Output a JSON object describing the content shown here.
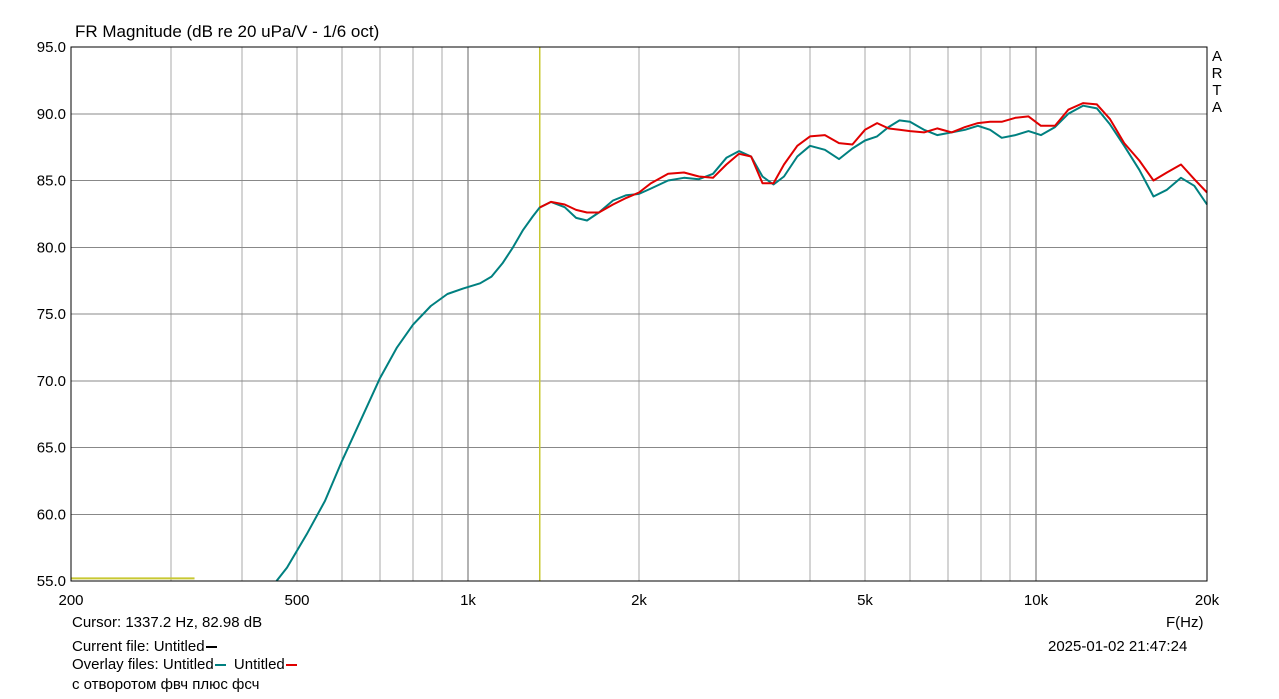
{
  "chart_data": {
    "type": "line",
    "title": "FR Magnitude (dB re 20 uPa/V - 1/6 oct)",
    "xlabel": "F(Hz)",
    "ylabel": "",
    "x_scale": "log",
    "xlim": [
      200,
      20000
    ],
    "ylim": [
      55.0,
      95.0
    ],
    "grid": true,
    "y_ticks": [
      "95.0",
      "90.0",
      "85.0",
      "80.0",
      "75.0",
      "70.0",
      "65.0",
      "60.0",
      "55.0"
    ],
    "y_tick_values": [
      95,
      90,
      85,
      80,
      75,
      70,
      65,
      60,
      55
    ],
    "x_ticks": [
      "200",
      "500",
      "1k",
      "2k",
      "5k",
      "10k",
      "20k"
    ],
    "x_tick_values": [
      200,
      500,
      1000,
      2000,
      5000,
      10000,
      20000
    ],
    "cursor": {
      "freq": 1337.2,
      "db": 82.98,
      "color": "#c8c832"
    },
    "low_marker": {
      "x": [
        200,
        330
      ],
      "y": 55.2,
      "color": "#c8c832"
    },
    "series": [
      {
        "color": "#008080",
        "x": [
          460,
          480,
          520,
          560,
          600,
          650,
          700,
          750,
          800,
          860,
          920,
          980,
          1050,
          1100,
          1150,
          1200,
          1250,
          1300,
          1337,
          1400,
          1480,
          1550,
          1620,
          1700,
          1800,
          1900,
          2000,
          2100,
          2250,
          2400,
          2550,
          2700,
          2850,
          3000,
          3150,
          3300,
          3450,
          3600,
          3800,
          4000,
          4250,
          4500,
          4750,
          5000,
          5250,
          5500,
          5750,
          6000,
          6350,
          6700,
          7100,
          7500,
          7900,
          8300,
          8700,
          9200,
          9700,
          10200,
          10800,
          11400,
          12100,
          12800,
          13500,
          14300,
          15200,
          16100,
          17000,
          18000,
          19000,
          20000
        ],
        "y": [
          55.0,
          56.0,
          58.5,
          61.0,
          64.0,
          67.2,
          70.2,
          72.5,
          74.2,
          75.6,
          76.5,
          76.9,
          77.3,
          77.8,
          78.8,
          80.0,
          81.3,
          82.3,
          82.98,
          83.4,
          83.0,
          82.2,
          82.0,
          82.6,
          83.5,
          83.9,
          84.0,
          84.4,
          85.0,
          85.2,
          85.1,
          85.5,
          86.7,
          87.2,
          86.8,
          85.3,
          84.7,
          85.3,
          86.8,
          87.6,
          87.3,
          86.6,
          87.4,
          88.0,
          88.3,
          89.0,
          89.5,
          89.4,
          88.8,
          88.4,
          88.6,
          88.8,
          89.1,
          88.8,
          88.2,
          88.4,
          88.7,
          88.4,
          89.0,
          90.0,
          90.6,
          90.4,
          89.2,
          87.6,
          85.8,
          83.8,
          84.3,
          85.2,
          84.6,
          83.2
        ]
      },
      {
        "color": "#e00000",
        "x": [
          1337,
          1400,
          1480,
          1550,
          1620,
          1700,
          1800,
          1900,
          2000,
          2100,
          2250,
          2400,
          2550,
          2700,
          2850,
          3000,
          3150,
          3300,
          3450,
          3600,
          3800,
          4000,
          4250,
          4500,
          4750,
          5000,
          5250,
          5500,
          5750,
          6000,
          6350,
          6700,
          7100,
          7500,
          7900,
          8300,
          8700,
          9200,
          9700,
          10200,
          10800,
          11400,
          12100,
          12800,
          13500,
          14300,
          15200,
          16100,
          17000,
          18000,
          19000,
          20000
        ],
        "y": [
          82.98,
          83.4,
          83.2,
          82.8,
          82.6,
          82.6,
          83.2,
          83.7,
          84.1,
          84.8,
          85.5,
          85.6,
          85.3,
          85.2,
          86.2,
          87.0,
          86.8,
          84.8,
          84.8,
          86.2,
          87.6,
          88.3,
          88.4,
          87.8,
          87.7,
          88.8,
          89.3,
          88.9,
          88.8,
          88.7,
          88.6,
          88.9,
          88.6,
          89.0,
          89.3,
          89.4,
          89.4,
          89.7,
          89.8,
          89.1,
          89.1,
          90.3,
          90.8,
          90.7,
          89.6,
          87.8,
          86.5,
          85.0,
          85.6,
          86.2,
          85.1,
          84.1
        ]
      }
    ]
  },
  "arta_letters": [
    "A",
    "R",
    "T",
    "A"
  ],
  "info": {
    "cursor_text": "Cursor: 1337.2 Hz, 82.98 dB",
    "current_file": "Current file: Untitled",
    "overlay_files": "Overlay files: Untitled",
    "overlay_second": "Untitled",
    "description": "с отворотом фвч плюс фсч",
    "timestamp": "2025-01-02  21:47:24"
  },
  "colors": {
    "grid": "#aaaaaa",
    "frame": "#000000",
    "current_file": "#000000",
    "overlay_1": "#008080",
    "overlay_2": "#e00000"
  }
}
